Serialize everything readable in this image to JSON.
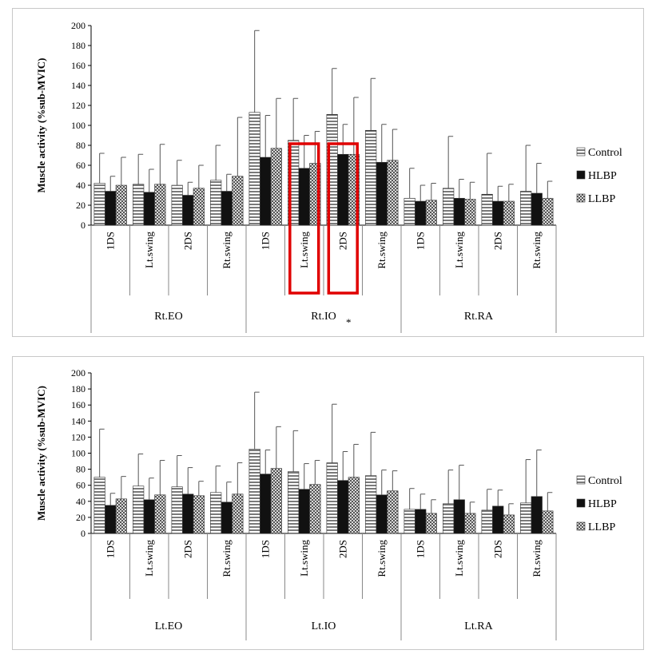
{
  "chart_data": [
    {
      "type": "bar",
      "title": "",
      "ylabel": "Muscle activity (%sub-MVIC)",
      "ylim": [
        0,
        200
      ],
      "yticks": [
        0,
        20,
        40,
        60,
        80,
        100,
        120,
        140,
        160,
        180,
        200
      ],
      "groups": [
        "Rt.EO",
        "Rt.IO",
        "Rt.RA"
      ],
      "phases": [
        "1DS",
        "Lt.swing",
        "2DS",
        "Rt.swing"
      ],
      "legend": [
        "Control",
        "HLBP",
        "LLBP"
      ],
      "legend_position": "right",
      "annotation": "*",
      "highlighted": [
        "Rt.IO Lt.swing",
        "Rt.IO 2DS"
      ],
      "series": [
        {
          "name": "Control",
          "values": [
            42,
            41,
            40,
            45,
            113,
            85,
            111,
            95,
            27,
            37,
            31,
            34
          ],
          "errors": [
            30,
            30,
            25,
            35,
            82,
            42,
            46,
            52,
            30,
            52,
            41,
            46
          ]
        },
        {
          "name": "HLBP",
          "values": [
            34,
            33,
            30,
            34,
            68,
            57,
            71,
            63,
            24,
            27,
            24,
            32
          ],
          "errors": [
            15,
            23,
            13,
            17,
            42,
            33,
            30,
            38,
            16,
            19,
            15,
            30
          ]
        },
        {
          "name": "LLBP",
          "values": [
            40,
            41,
            37,
            49,
            77,
            62,
            71,
            65,
            25,
            26,
            24,
            27
          ],
          "errors": [
            28,
            40,
            23,
            59,
            50,
            32,
            57,
            31,
            17,
            17,
            17,
            17
          ]
        }
      ]
    },
    {
      "type": "bar",
      "title": "",
      "ylabel": "Muscle activity (%sub-MVIC)",
      "ylim": [
        0,
        200
      ],
      "yticks": [
        0,
        20,
        40,
        60,
        80,
        100,
        120,
        140,
        160,
        180,
        200
      ],
      "groups": [
        "Lt.EO",
        "Lt.IO",
        "Lt.RA"
      ],
      "phases": [
        "1DS",
        "Lt.swing",
        "2DS",
        "Rt.swing"
      ],
      "legend": [
        "Control",
        "HLBP",
        "LLBP"
      ],
      "legend_position": "right",
      "annotation": "",
      "highlighted": [],
      "series": [
        {
          "name": "Control",
          "values": [
            70,
            59,
            58,
            51,
            105,
            77,
            88,
            72,
            30,
            37,
            29,
            38
          ],
          "errors": [
            60,
            40,
            39,
            33,
            71,
            51,
            73,
            54,
            26,
            42,
            26,
            54
          ]
        },
        {
          "name": "HLBP",
          "values": [
            35,
            42,
            49,
            39,
            74,
            55,
            66,
            48,
            30,
            42,
            34,
            46
          ],
          "errors": [
            15,
            27,
            33,
            25,
            30,
            32,
            36,
            31,
            19,
            43,
            20,
            58
          ]
        },
        {
          "name": "LLBP",
          "values": [
            43,
            48,
            47,
            49,
            81,
            61,
            70,
            53,
            25,
            25,
            23,
            28
          ],
          "errors": [
            28,
            43,
            18,
            39,
            52,
            30,
            41,
            25,
            17,
            14,
            14,
            23
          ]
        }
      ]
    }
  ]
}
